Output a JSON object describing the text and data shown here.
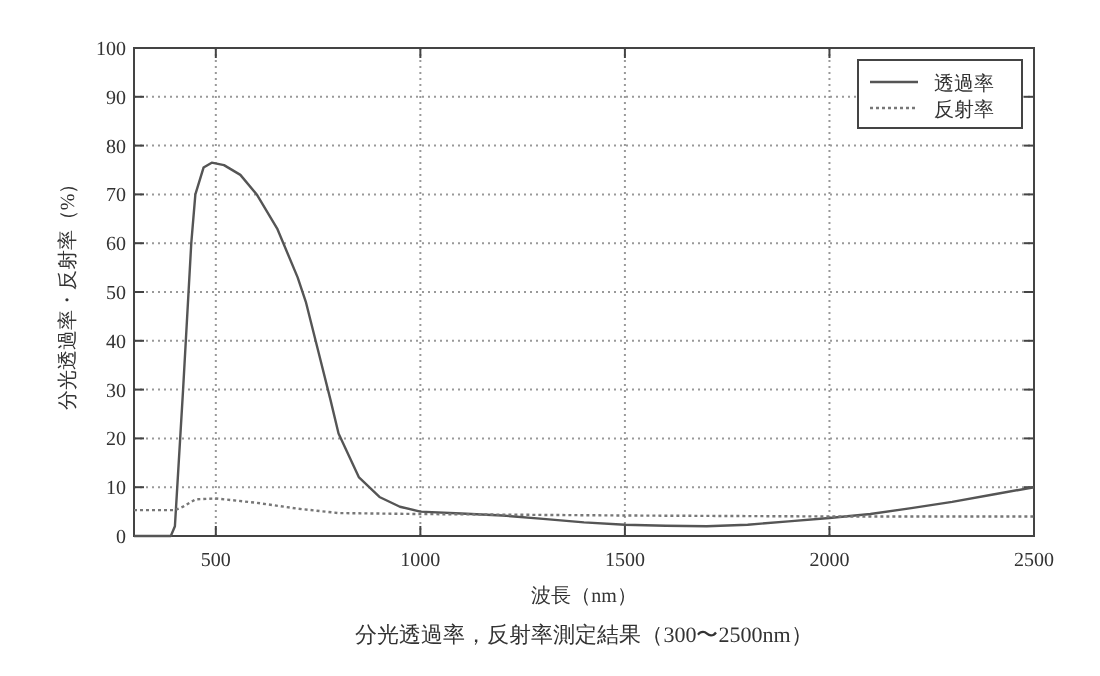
{
  "chart_data": {
    "type": "line",
    "title": "分光透過率，反射率測定結果（300〜2500nm）",
    "xlabel": "波長（nm）",
    "ylabel": "分光透過率・反射率（%）",
    "xlim": [
      300,
      2500
    ],
    "xticks": [
      {
        "value": 300,
        "label": null
      },
      500,
      1000,
      1500,
      2000,
      2500
    ],
    "ylim": [
      0,
      100
    ],
    "yticks": [
      0,
      10,
      20,
      30,
      40,
      50,
      60,
      70,
      80,
      90,
      100
    ],
    "grid": true,
    "legend": "top right",
    "series": [
      {
        "name": "透過率",
        "color": "#555555",
        "line_style": "solid",
        "x": [
          300,
          390,
          400,
          420,
          440,
          450,
          470,
          490,
          520,
          560,
          600,
          650,
          700,
          720,
          750,
          780,
          800,
          850,
          900,
          950,
          1000,
          1100,
          1200,
          1300,
          1400,
          1500,
          1600,
          1700,
          1800,
          1900,
          2000,
          2100,
          2200,
          2300,
          2400,
          2500
        ],
        "values": [
          0,
          0,
          2,
          30,
          60,
          70,
          75.5,
          76.5,
          76,
          74,
          70,
          63,
          53,
          48,
          38,
          28,
          21,
          12,
          8,
          6,
          5,
          4.6,
          4.2,
          3.5,
          2.8,
          2.3,
          2.1,
          2,
          2.3,
          3,
          3.7,
          4.5,
          5.7,
          7,
          8.5,
          10
        ]
      },
      {
        "name": "反射率",
        "color": "#777777",
        "line_style": "dotted",
        "x": [
          300,
          400,
          420,
          450,
          500,
          600,
          700,
          800,
          1000,
          1500,
          2000,
          2500
        ],
        "values": [
          5.3,
          5.3,
          6,
          7.5,
          7.7,
          6.8,
          5.6,
          4.7,
          4.5,
          4.2,
          4,
          4
        ]
      }
    ]
  }
}
